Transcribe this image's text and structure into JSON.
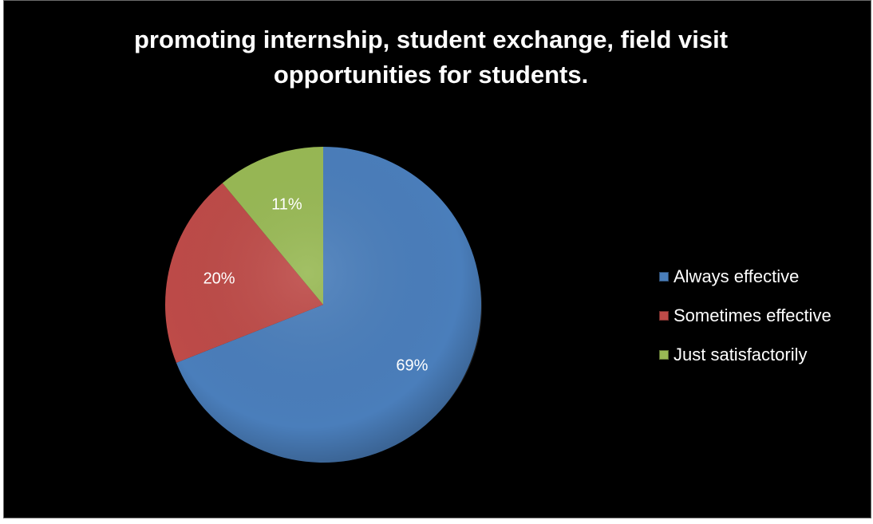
{
  "chart_data": {
    "type": "pie",
    "title": "promoting internship, student exchange, field visit opportunities for students.",
    "categories": [
      "Always effective",
      "Sometimes effective",
      "Just satisfactorily"
    ],
    "values": [
      69,
      20,
      11
    ],
    "data_labels": [
      "69%",
      "20%",
      "11%"
    ],
    "colors": [
      "#4a7ebb",
      "#be4b48",
      "#98b954"
    ],
    "legend_position": "right",
    "start_angle_deg": 0,
    "direction": "clockwise"
  },
  "legend": {
    "items": [
      {
        "label": "Always effective",
        "color": "#4a7ebb"
      },
      {
        "label": "Sometimes effective",
        "color": "#be4b48"
      },
      {
        "label": "Just satisfactorily",
        "color": "#98b954"
      }
    ]
  }
}
